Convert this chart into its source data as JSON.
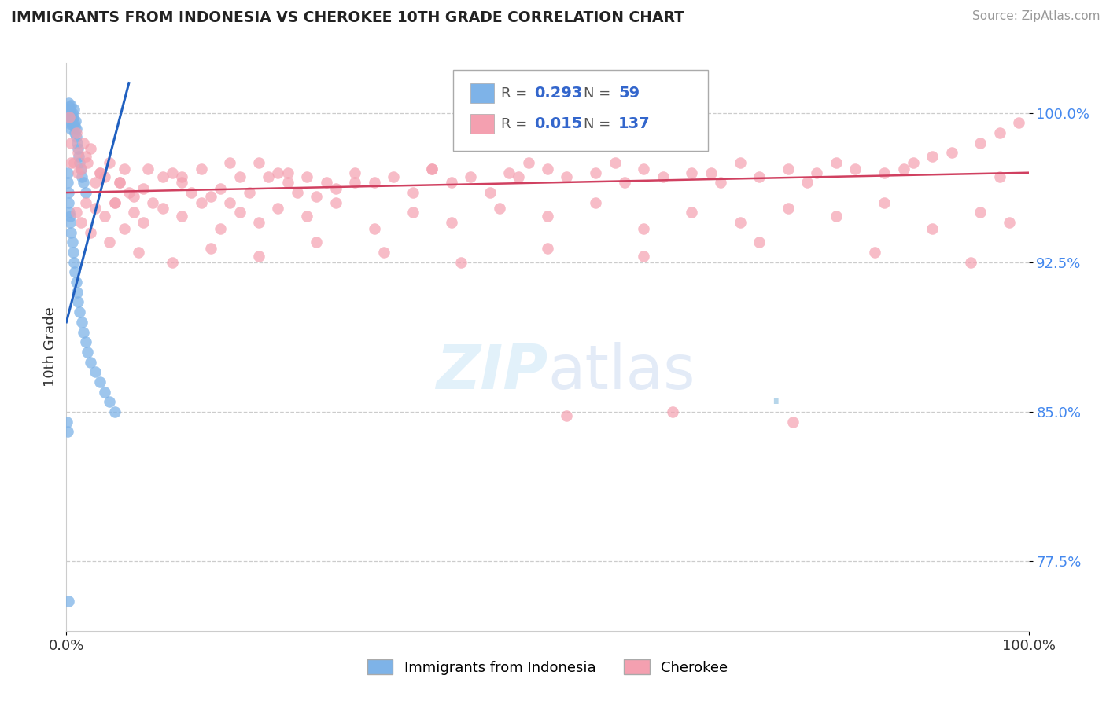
{
  "title": "IMMIGRANTS FROM INDONESIA VS CHEROKEE 10TH GRADE CORRELATION CHART",
  "source_text": "Source: ZipAtlas.com",
  "ylabel": "10th Grade",
  "legend_label_1": "Immigrants from Indonesia",
  "legend_label_2": "Cherokee",
  "r1": 0.293,
  "n1": 59,
  "r2": 0.015,
  "n2": 137,
  "color1": "#7EB3E8",
  "color2": "#F4A0B0",
  "trendline1_color": "#2060C0",
  "trendline2_color": "#D04060",
  "xmin": 0.0,
  "xmax": 100.0,
  "ymin": 74.0,
  "ymax": 102.5,
  "yticks": [
    77.5,
    85.0,
    92.5,
    100.0
  ],
  "xtick_labels": [
    "0.0%",
    "100.0%"
  ],
  "ytick_labels": [
    "77.5%",
    "85.0%",
    "92.5%",
    "100.0%"
  ],
  "background_color": "#ffffff",
  "grid_color": "#cccccc",
  "trendline1_x0": 0.0,
  "trendline1_y0": 89.5,
  "trendline1_x1": 6.5,
  "trendline1_y1": 101.5,
  "trendline2_x0": 0.0,
  "trendline2_y0": 96.0,
  "trendline2_x1": 100.0,
  "trendline2_y1": 97.0,
  "scatter1_x": [
    0.1,
    0.15,
    0.2,
    0.2,
    0.25,
    0.3,
    0.35,
    0.4,
    0.45,
    0.5,
    0.5,
    0.6,
    0.6,
    0.65,
    0.7,
    0.75,
    0.8,
    0.85,
    0.9,
    0.95,
    1.0,
    1.0,
    1.1,
    1.2,
    1.3,
    1.4,
    1.5,
    1.6,
    1.8,
    2.0,
    0.1,
    0.15,
    0.2,
    0.25,
    0.3,
    0.35,
    0.4,
    0.5,
    0.6,
    0.7,
    0.8,
    0.9,
    1.0,
    1.1,
    1.2,
    1.4,
    1.6,
    1.8,
    2.0,
    2.2,
    2.5,
    3.0,
    3.5,
    4.0,
    4.5,
    5.0,
    0.05,
    0.1,
    0.2
  ],
  "scatter1_y": [
    99.5,
    100.2,
    100.5,
    99.8,
    100.0,
    100.3,
    99.6,
    100.1,
    99.9,
    100.4,
    99.2,
    99.7,
    100.0,
    99.4,
    99.8,
    100.2,
    99.5,
    99.0,
    99.3,
    99.6,
    98.8,
    99.2,
    98.5,
    98.2,
    97.8,
    97.5,
    97.2,
    96.8,
    96.5,
    96.0,
    97.0,
    96.5,
    96.0,
    95.5,
    95.0,
    94.8,
    94.5,
    94.0,
    93.5,
    93.0,
    92.5,
    92.0,
    91.5,
    91.0,
    90.5,
    90.0,
    89.5,
    89.0,
    88.5,
    88.0,
    87.5,
    87.0,
    86.5,
    86.0,
    85.5,
    85.0,
    84.5,
    84.0,
    75.5
  ],
  "scatter2_x": [
    0.3,
    0.5,
    0.8,
    1.0,
    1.2,
    1.5,
    1.8,
    2.0,
    2.5,
    3.0,
    3.5,
    4.0,
    4.5,
    5.0,
    5.5,
    6.0,
    6.5,
    7.0,
    8.0,
    9.0,
    10.0,
    11.0,
    12.0,
    13.0,
    14.0,
    15.0,
    16.0,
    17.0,
    18.0,
    19.0,
    20.0,
    21.0,
    22.0,
    23.0,
    24.0,
    25.0,
    26.0,
    27.0,
    28.0,
    30.0,
    32.0,
    34.0,
    36.0,
    38.0,
    40.0,
    42.0,
    44.0,
    46.0,
    48.0,
    50.0,
    52.0,
    55.0,
    58.0,
    60.0,
    62.0,
    65.0,
    68.0,
    70.0,
    72.0,
    75.0,
    78.0,
    80.0,
    82.0,
    85.0,
    88.0,
    90.0,
    92.0,
    95.0,
    97.0,
    99.0,
    1.0,
    1.5,
    2.0,
    2.5,
    3.0,
    4.0,
    5.0,
    6.0,
    7.0,
    8.0,
    10.0,
    12.0,
    14.0,
    16.0,
    18.0,
    20.0,
    22.0,
    25.0,
    28.0,
    32.0,
    36.0,
    40.0,
    45.0,
    50.0,
    55.0,
    60.0,
    65.0,
    70.0,
    75.0,
    80.0,
    85.0,
    90.0,
    95.0,
    98.0,
    0.5,
    1.2,
    2.2,
    3.5,
    5.5,
    8.5,
    12.0,
    17.0,
    23.0,
    30.0,
    38.0,
    47.0,
    57.0,
    67.0,
    77.0,
    87.0,
    97.0,
    4.5,
    7.5,
    11.0,
    15.0,
    20.0,
    26.0,
    33.0,
    41.0,
    50.0,
    60.0,
    72.0,
    84.0,
    94.0,
    75.5,
    63.0,
    52.0
  ],
  "scatter2_y": [
    99.8,
    98.5,
    97.5,
    99.0,
    98.0,
    97.2,
    98.5,
    97.8,
    98.2,
    96.5,
    97.0,
    96.8,
    97.5,
    95.5,
    96.5,
    97.2,
    96.0,
    95.8,
    96.2,
    95.5,
    96.8,
    97.0,
    96.5,
    96.0,
    97.2,
    95.8,
    96.2,
    95.5,
    96.8,
    96.0,
    97.5,
    96.8,
    97.0,
    96.5,
    96.0,
    96.8,
    95.8,
    96.5,
    96.2,
    97.0,
    96.5,
    96.8,
    96.0,
    97.2,
    96.5,
    96.8,
    96.0,
    97.0,
    97.5,
    97.2,
    96.8,
    97.0,
    96.5,
    97.2,
    96.8,
    97.0,
    96.5,
    97.5,
    96.8,
    97.2,
    97.0,
    97.5,
    97.2,
    97.0,
    97.5,
    97.8,
    98.0,
    98.5,
    99.0,
    99.5,
    95.0,
    94.5,
    95.5,
    94.0,
    95.2,
    94.8,
    95.5,
    94.2,
    95.0,
    94.5,
    95.2,
    94.8,
    95.5,
    94.2,
    95.0,
    94.5,
    95.2,
    94.8,
    95.5,
    94.2,
    95.0,
    94.5,
    95.2,
    94.8,
    95.5,
    94.2,
    95.0,
    94.5,
    95.2,
    94.8,
    95.5,
    94.2,
    95.0,
    94.5,
    97.5,
    97.0,
    97.5,
    97.0,
    96.5,
    97.2,
    96.8,
    97.5,
    97.0,
    96.5,
    97.2,
    96.8,
    97.5,
    97.0,
    96.5,
    97.2,
    96.8,
    93.5,
    93.0,
    92.5,
    93.2,
    92.8,
    93.5,
    93.0,
    92.5,
    93.2,
    92.8,
    93.5,
    93.0,
    92.5,
    84.5,
    85.0,
    84.8
  ]
}
